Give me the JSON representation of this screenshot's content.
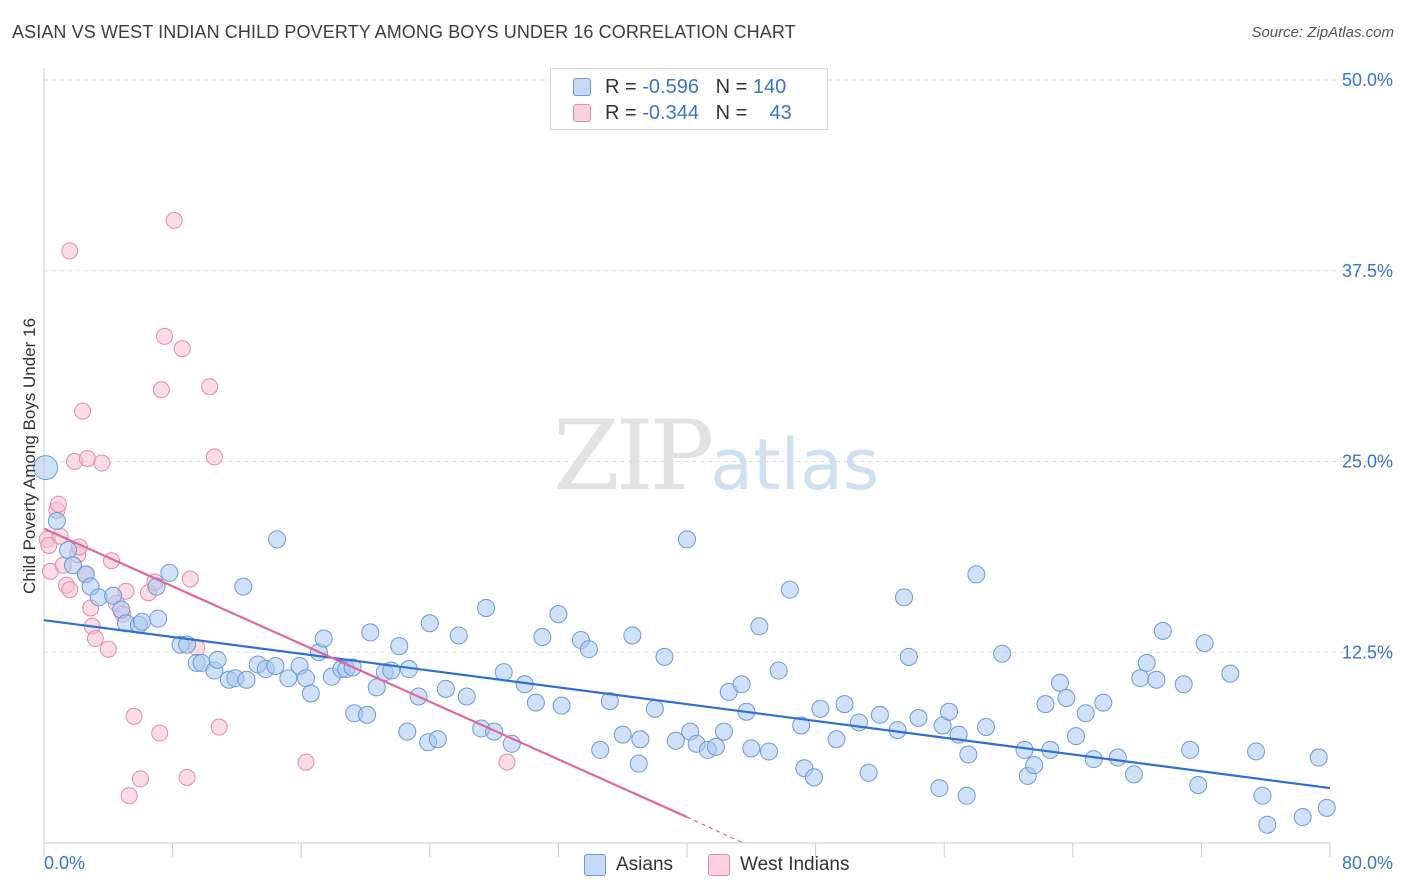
{
  "header": {
    "title": "ASIAN VS WEST INDIAN CHILD POVERTY AMONG BOYS UNDER 16 CORRELATION CHART",
    "source": "Source: ZipAtlas.com"
  },
  "watermark": {
    "part1": "ZIP",
    "part2": "atlas"
  },
  "legend": {
    "rows": [
      {
        "r_label": "R =",
        "r_value": "-0.596",
        "n_label": "N =",
        "n_value": "140"
      },
      {
        "r_label": "R =",
        "r_value": "-0.344",
        "n_label": "N =",
        "n_value": "43"
      }
    ],
    "bottom": [
      "Asians",
      "West Indians"
    ]
  },
  "colors": {
    "asian_fill": "#a9c8f0",
    "asian_stroke": "#6b9ad6",
    "asian_line": "#2f6fd1",
    "wi_fill": "#f6bfd0",
    "wi_stroke": "#e58aa8",
    "wi_line": "#e0679a",
    "axis_text": "#3b74c9",
    "grid": "#dddddd"
  },
  "chart_data": {
    "type": "scatter",
    "title": "ASIAN VS WEST INDIAN CHILD POVERTY AMONG BOYS UNDER 16 CORRELATION CHART",
    "xlabel": "",
    "ylabel": "Child Poverty Among Boys Under 16",
    "xlim": [
      0,
      80
    ],
    "ylim": [
      0,
      50
    ],
    "x_tick_labels": [
      "0.0%",
      "80.0%"
    ],
    "y_tick_labels": [
      "12.5%",
      "25.0%",
      "37.5%",
      "50.0%"
    ],
    "y_ticks": [
      12.5,
      25.0,
      37.5,
      50.0
    ],
    "grid": true,
    "legend_position": "top-center",
    "series": [
      {
        "name": "Asians",
        "r": -0.596,
        "n": 140,
        "trend": [
          [
            0,
            14.6
          ],
          [
            80,
            3.6
          ]
        ],
        "points": [
          [
            0.1,
            24.6
          ],
          [
            0.8,
            21.1
          ],
          [
            1.5,
            19.2
          ],
          [
            1.8,
            18.2
          ],
          [
            2.6,
            17.6
          ],
          [
            2.9,
            16.8
          ],
          [
            3.4,
            16.1
          ],
          [
            4.3,
            16.2
          ],
          [
            4.8,
            15.3
          ],
          [
            5.1,
            14.4
          ],
          [
            5.9,
            14.3
          ],
          [
            6.1,
            14.5
          ],
          [
            7.0,
            16.8
          ],
          [
            7.1,
            14.7
          ],
          [
            7.8,
            17.7
          ],
          [
            8.5,
            13.0
          ],
          [
            8.9,
            13.0
          ],
          [
            9.5,
            11.8
          ],
          [
            9.8,
            11.8
          ],
          [
            10.6,
            11.3
          ],
          [
            10.8,
            12.0
          ],
          [
            11.5,
            10.7
          ],
          [
            11.9,
            10.8
          ],
          [
            12.4,
            16.8
          ],
          [
            12.6,
            10.7
          ],
          [
            13.3,
            11.7
          ],
          [
            13.8,
            11.4
          ],
          [
            14.4,
            11.6
          ],
          [
            14.5,
            19.9
          ],
          [
            15.2,
            10.8
          ],
          [
            15.9,
            11.6
          ],
          [
            16.3,
            10.8
          ],
          [
            16.6,
            9.8
          ],
          [
            17.1,
            12.5
          ],
          [
            17.4,
            13.4
          ],
          [
            17.9,
            10.9
          ],
          [
            18.5,
            11.4
          ],
          [
            18.8,
            11.4
          ],
          [
            19.2,
            11.5
          ],
          [
            19.3,
            8.5
          ],
          [
            20.1,
            8.4
          ],
          [
            20.3,
            13.8
          ],
          [
            20.7,
            10.2
          ],
          [
            21.2,
            11.2
          ],
          [
            21.6,
            11.3
          ],
          [
            22.1,
            12.9
          ],
          [
            22.6,
            7.3
          ],
          [
            22.7,
            11.4
          ],
          [
            23.3,
            9.6
          ],
          [
            23.9,
            6.6
          ],
          [
            24.0,
            14.4
          ],
          [
            24.5,
            6.8
          ],
          [
            25.0,
            10.1
          ],
          [
            25.8,
            13.6
          ],
          [
            26.3,
            9.6
          ],
          [
            27.2,
            7.5
          ],
          [
            27.5,
            15.4
          ],
          [
            28.0,
            7.3
          ],
          [
            28.6,
            11.2
          ],
          [
            29.1,
            6.5
          ],
          [
            29.9,
            10.4
          ],
          [
            30.6,
            9.2
          ],
          [
            31.0,
            13.5
          ],
          [
            32.0,
            15.0
          ],
          [
            32.2,
            9.0
          ],
          [
            33.4,
            13.3
          ],
          [
            33.9,
            12.7
          ],
          [
            34.6,
            6.1
          ],
          [
            35.2,
            9.3
          ],
          [
            36.0,
            7.1
          ],
          [
            36.6,
            13.6
          ],
          [
            37.0,
            5.2
          ],
          [
            37.1,
            6.8
          ],
          [
            38.0,
            8.8
          ],
          [
            38.6,
            12.2
          ],
          [
            39.3,
            6.7
          ],
          [
            40.0,
            19.9
          ],
          [
            40.2,
            7.3
          ],
          [
            40.6,
            6.5
          ],
          [
            41.3,
            6.1
          ],
          [
            41.8,
            6.3
          ],
          [
            42.3,
            7.3
          ],
          [
            42.6,
            9.9
          ],
          [
            43.4,
            10.4
          ],
          [
            43.7,
            8.6
          ],
          [
            44.0,
            6.2
          ],
          [
            44.5,
            14.2
          ],
          [
            45.1,
            6.0
          ],
          [
            45.7,
            11.3
          ],
          [
            46.4,
            16.6
          ],
          [
            47.1,
            7.7
          ],
          [
            47.3,
            4.9
          ],
          [
            47.9,
            4.3
          ],
          [
            48.3,
            8.8
          ],
          [
            49.3,
            6.8
          ],
          [
            49.8,
            9.1
          ],
          [
            50.7,
            7.9
          ],
          [
            51.3,
            4.6
          ],
          [
            52.0,
            8.4
          ],
          [
            53.1,
            7.4
          ],
          [
            53.5,
            16.1
          ],
          [
            53.8,
            12.2
          ],
          [
            54.4,
            8.2
          ],
          [
            55.7,
            3.6
          ],
          [
            55.9,
            7.7
          ],
          [
            56.3,
            8.6
          ],
          [
            56.9,
            7.1
          ],
          [
            57.4,
            3.1
          ],
          [
            57.5,
            5.8
          ],
          [
            58.0,
            17.6
          ],
          [
            58.6,
            7.6
          ],
          [
            59.6,
            12.4
          ],
          [
            61.0,
            6.1
          ],
          [
            61.2,
            4.4
          ],
          [
            61.6,
            5.1
          ],
          [
            62.3,
            9.1
          ],
          [
            62.6,
            6.1
          ],
          [
            63.2,
            10.5
          ],
          [
            63.6,
            9.5
          ],
          [
            64.2,
            7.0
          ],
          [
            64.8,
            8.5
          ],
          [
            65.3,
            5.5
          ],
          [
            65.9,
            9.2
          ],
          [
            66.8,
            5.6
          ],
          [
            67.8,
            4.5
          ],
          [
            68.2,
            10.8
          ],
          [
            68.6,
            11.8
          ],
          [
            69.2,
            10.7
          ],
          [
            69.6,
            13.9
          ],
          [
            70.9,
            10.4
          ],
          [
            71.3,
            6.1
          ],
          [
            71.8,
            3.8
          ],
          [
            72.2,
            13.1
          ],
          [
            73.8,
            11.1
          ],
          [
            75.4,
            6.0
          ],
          [
            75.8,
            3.1
          ],
          [
            76.1,
            1.2
          ],
          [
            78.3,
            1.7
          ],
          [
            79.3,
            5.6
          ],
          [
            79.8,
            2.3
          ]
        ]
      },
      {
        "name": "West Indians",
        "r": -0.344,
        "n": 43,
        "trend": [
          [
            0,
            20.6
          ],
          [
            40,
            1.7
          ]
        ],
        "trend_dashed": [
          [
            40,
            1.7
          ],
          [
            43.5,
            0
          ]
        ],
        "points": [
          [
            0.2,
            19.9
          ],
          [
            0.3,
            19.5
          ],
          [
            0.4,
            17.8
          ],
          [
            0.8,
            21.8
          ],
          [
            0.9,
            22.2
          ],
          [
            1.0,
            20.1
          ],
          [
            1.2,
            18.2
          ],
          [
            1.4,
            16.9
          ],
          [
            1.6,
            16.6
          ],
          [
            1.6,
            38.8
          ],
          [
            1.9,
            25.0
          ],
          [
            2.1,
            18.9
          ],
          [
            2.2,
            19.4
          ],
          [
            2.4,
            28.3
          ],
          [
            2.6,
            17.6
          ],
          [
            2.7,
            25.2
          ],
          [
            2.9,
            15.4
          ],
          [
            3.0,
            14.2
          ],
          [
            3.2,
            13.4
          ],
          [
            3.6,
            24.9
          ],
          [
            4.0,
            12.7
          ],
          [
            4.2,
            18.5
          ],
          [
            4.5,
            15.7
          ],
          [
            4.9,
            15.0
          ],
          [
            5.1,
            16.5
          ],
          [
            5.3,
            3.1
          ],
          [
            5.6,
            8.3
          ],
          [
            6.0,
            4.2
          ],
          [
            6.5,
            16.4
          ],
          [
            6.9,
            17.1
          ],
          [
            7.2,
            7.2
          ],
          [
            7.3,
            29.7
          ],
          [
            7.5,
            33.2
          ],
          [
            8.1,
            40.8
          ],
          [
            8.6,
            32.4
          ],
          [
            8.9,
            4.3
          ],
          [
            9.1,
            17.3
          ],
          [
            9.5,
            12.8
          ],
          [
            10.3,
            29.9
          ],
          [
            10.6,
            25.3
          ],
          [
            10.9,
            7.6
          ],
          [
            16.3,
            5.3
          ],
          [
            28.8,
            5.3
          ]
        ]
      }
    ]
  }
}
